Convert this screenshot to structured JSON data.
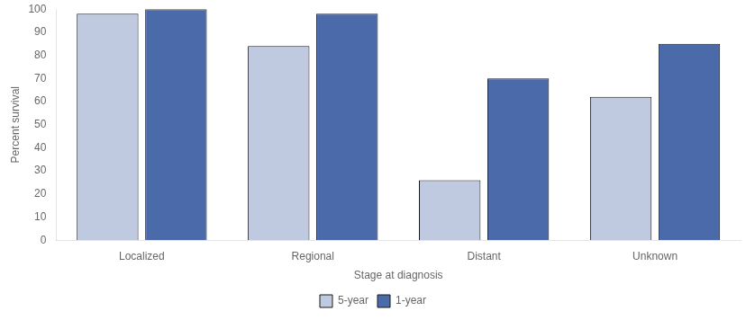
{
  "chart_data": {
    "type": "bar",
    "categories": [
      "Localized",
      "Regional",
      "Distant",
      "Unknown"
    ],
    "series": [
      {
        "name": "5-year",
        "color": "#bfc9e0",
        "values": [
          98,
          84,
          26,
          62
        ]
      },
      {
        "name": "1-year",
        "color": "#4a6aaa",
        "values": [
          100,
          98,
          70,
          85
        ]
      }
    ],
    "xlabel": "Stage at diagnosis",
    "ylabel": "Percent survival",
    "ylim": [
      0,
      100
    ],
    "yticks": [
      0,
      10,
      20,
      30,
      40,
      50,
      60,
      70,
      80,
      90,
      100
    ],
    "grid": false,
    "legend": "bottom"
  }
}
